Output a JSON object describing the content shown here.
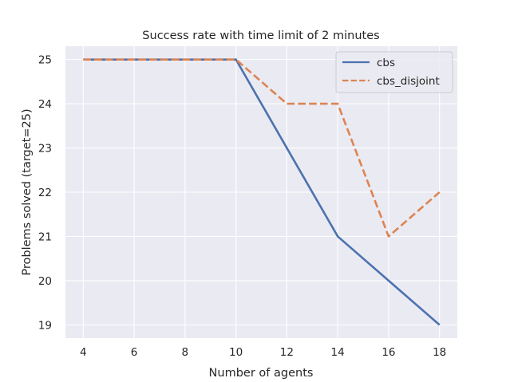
{
  "chart_data": {
    "type": "line",
    "title": "Success rate with time limit of 2 minutes",
    "xlabel": "Number of agents",
    "ylabel": "Problems solved (target=25)",
    "x": [
      4,
      6,
      8,
      10,
      12,
      14,
      16,
      18
    ],
    "xticks": [
      4,
      6,
      8,
      10,
      12,
      14,
      16,
      18
    ],
    "yticks": [
      19,
      20,
      21,
      22,
      23,
      24,
      25
    ],
    "xlim": [
      3.3,
      18.7
    ],
    "ylim": [
      18.7,
      25.3
    ],
    "grid": true,
    "legend_position": "top-right",
    "series": [
      {
        "name": "cbs",
        "values": [
          25,
          25,
          25,
          25,
          23,
          21,
          20,
          19
        ],
        "color": "#4c72b0",
        "style": "solid"
      },
      {
        "name": "cbs_disjoint",
        "values": [
          25,
          25,
          25,
          25,
          24,
          24,
          21,
          22
        ],
        "color": "#dd8452",
        "style": "dashed"
      }
    ]
  },
  "colors": {
    "plot_background": "#eaeaf2",
    "grid": "#ffffff",
    "text": "#262626"
  }
}
